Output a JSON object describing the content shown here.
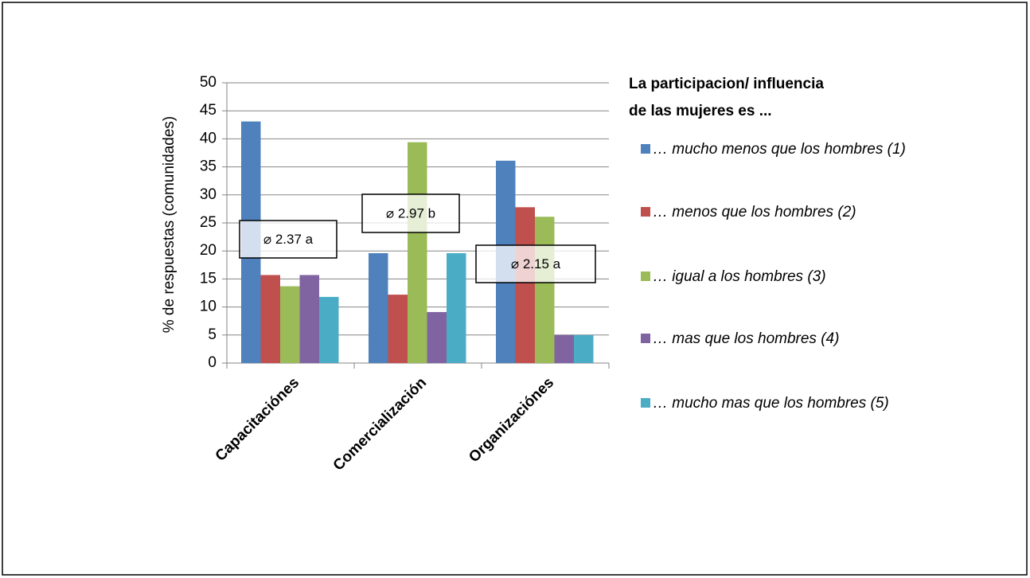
{
  "chart_data": {
    "type": "bar",
    "categories": [
      "Capacitaciónes",
      "Comercialización",
      "Organizaciónes"
    ],
    "y_label": "% de respuestas (comunidades)",
    "legend_title": [
      "La participacion/  influencia",
      "de las mujeres es ..."
    ],
    "series": [
      {
        "name": "… mucho menos que los hombres (1)",
        "color": "#4f81bd",
        "values": [
          43.1,
          19.6,
          36.1
        ]
      },
      {
        "name": "… menos que los hombres (2)",
        "color": "#c0504d",
        "values": [
          15.7,
          12.2,
          27.8
        ]
      },
      {
        "name": "… igual a los hombres (3)",
        "color": "#9bbb59",
        "values": [
          13.7,
          39.4,
          26.1
        ]
      },
      {
        "name": "… mas que los hombres (4)",
        "color": "#8064a2",
        "values": [
          15.7,
          9.1,
          5.0
        ]
      },
      {
        "name": "… mucho mas que los hombres (5)",
        "color": "#4bacc6",
        "values": [
          11.8,
          19.6,
          5.0
        ]
      }
    ],
    "annotations": [
      "⌀ 2.37 a",
      "⌀ 2.97 b",
      "⌀ 2.15 a"
    ],
    "ylim": [
      0,
      50
    ],
    "yticks": [
      0,
      5,
      10,
      15,
      20,
      25,
      30,
      35,
      40,
      45,
      50
    ],
    "grid": true,
    "legend": "right"
  }
}
